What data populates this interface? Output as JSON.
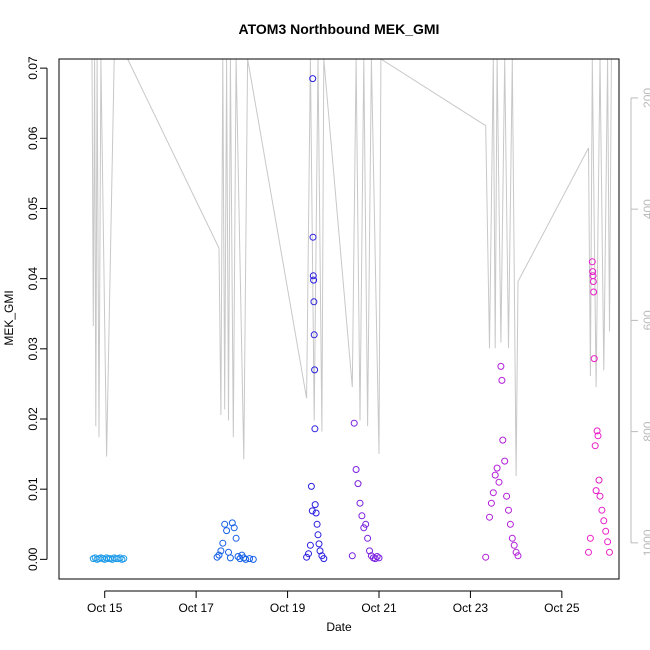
{
  "chart_data": {
    "type": "scatter",
    "title": "ATOM3 Northbound MEK_GMI",
    "xlabel": "Date",
    "ylabel": "MEK_GMI",
    "xlim": [
      "2023-10-14 00:00",
      "2023-10-26 06:00"
    ],
    "ylim": [
      -0.0028,
      0.0713
    ],
    "x_ticks": [
      {
        "t": "2023-10-15",
        "label": "Oct 15"
      },
      {
        "t": "2023-10-17",
        "label": "Oct 17"
      },
      {
        "t": "2023-10-19",
        "label": "Oct 19"
      },
      {
        "t": "2023-10-21",
        "label": "Oct 21"
      },
      {
        "t": "2023-10-23",
        "label": "Oct 23"
      },
      {
        "t": "2023-10-25",
        "label": "Oct 25"
      }
    ],
    "y_ticks": [
      {
        "v": 0.0,
        "label": "0.00"
      },
      {
        "v": 0.01,
        "label": "0.01"
      },
      {
        "v": 0.02,
        "label": "0.02"
      },
      {
        "v": 0.03,
        "label": "0.03"
      },
      {
        "v": 0.04,
        "label": "0.04"
      },
      {
        "v": 0.05,
        "label": "0.05"
      },
      {
        "v": 0.06,
        "label": "0.06"
      },
      {
        "v": 0.07,
        "label": "0.07"
      }
    ],
    "secondary_axis": {
      "side": "right",
      "color": "#bbbbbb",
      "reversed": true,
      "ylim": [
        1065,
        130
      ],
      "ticks": [
        {
          "v": 200,
          "label": "200"
        },
        {
          "v": 400,
          "label": "400"
        },
        {
          "v": 600,
          "label": "600"
        },
        {
          "v": 800,
          "label": "800"
        },
        {
          "v": 1000,
          "label": "1000"
        }
      ]
    },
    "series": [
      {
        "color": "#1e9be8",
        "points": [
          [
            "2023-10-14 18:00",
            0.0001
          ],
          [
            "2023-10-14 19:00",
            0.0002
          ],
          [
            "2023-10-14 20:00",
            0.0
          ],
          [
            "2023-10-14 21:00",
            0.0001
          ],
          [
            "2023-10-14 22:00",
            0.0002
          ],
          [
            "2023-10-14 23:00",
            0.0001
          ],
          [
            "2023-10-15 00:00",
            0.0
          ],
          [
            "2023-10-15 01:00",
            0.0002
          ],
          [
            "2023-10-15 02:00",
            0.0001
          ],
          [
            "2023-10-15 03:00",
            0.0001
          ],
          [
            "2023-10-15 04:00",
            0.0
          ],
          [
            "2023-10-15 05:00",
            0.0002
          ],
          [
            "2023-10-15 06:00",
            0.0001
          ],
          [
            "2023-10-15 07:00",
            0.0001
          ],
          [
            "2023-10-15 08:00",
            0.0002
          ],
          [
            "2023-10-15 09:00",
            0.0
          ],
          [
            "2023-10-15 10:00",
            0.0001
          ]
        ]
      },
      {
        "color": "#1460e8",
        "points": [
          [
            "2023-10-17 11:00",
            0.0003
          ],
          [
            "2023-10-17 12:00",
            0.0006
          ],
          [
            "2023-10-17 13:00",
            0.0012
          ],
          [
            "2023-10-17 14:00",
            0.0023
          ],
          [
            "2023-10-17 15:00",
            0.005
          ],
          [
            "2023-10-17 16:00",
            0.0041
          ],
          [
            "2023-10-17 17:00",
            0.001
          ],
          [
            "2023-10-17 18:00",
            0.0002
          ],
          [
            "2023-10-17 19:00",
            0.0052
          ],
          [
            "2023-10-17 20:00",
            0.0045
          ],
          [
            "2023-10-17 21:00",
            0.003
          ],
          [
            "2023-10-17 22:00",
            0.0004
          ],
          [
            "2023-10-17 23:00",
            0.0001
          ],
          [
            "2023-10-18 00:00",
            0.0006
          ],
          [
            "2023-10-18 01:00",
            0.0002
          ],
          [
            "2023-10-18 02:00",
            0.0
          ],
          [
            "2023-10-18 04:00",
            0.0001
          ],
          [
            "2023-10-18 06:00",
            0.0
          ]
        ]
      },
      {
        "color": "#2a1ee0",
        "points": [
          [
            "2023-10-19 10:00",
            0.0003
          ],
          [
            "2023-10-19 11:00",
            0.0008
          ],
          [
            "2023-10-19 12:00",
            0.002
          ],
          [
            "2023-10-19 12:30",
            0.0104
          ],
          [
            "2023-10-19 13:00",
            0.0069
          ],
          [
            "2023-10-19 13:10",
            0.0685
          ],
          [
            "2023-10-19 13:20",
            0.0459
          ],
          [
            "2023-10-19 13:30",
            0.0404
          ],
          [
            "2023-10-19 13:40",
            0.0398
          ],
          [
            "2023-10-19 13:50",
            0.0367
          ],
          [
            "2023-10-19 14:00",
            0.032
          ],
          [
            "2023-10-19 14:10",
            0.027
          ],
          [
            "2023-10-19 14:20",
            0.0186
          ],
          [
            "2023-10-19 14:30",
            0.0078
          ],
          [
            "2023-10-19 15:00",
            0.0066
          ],
          [
            "2023-10-19 15:30",
            0.005
          ],
          [
            "2023-10-19 16:00",
            0.0035
          ],
          [
            "2023-10-19 16:30",
            0.0022
          ],
          [
            "2023-10-19 17:00",
            0.0012
          ],
          [
            "2023-10-19 18:00",
            0.0005
          ],
          [
            "2023-10-19 19:00",
            0.0001
          ]
        ]
      },
      {
        "color": "#7a1ee0",
        "points": [
          [
            "2023-10-20 10:00",
            0.0005
          ],
          [
            "2023-10-20 11:00",
            0.0194
          ],
          [
            "2023-10-20 12:00",
            0.0128
          ],
          [
            "2023-10-20 13:00",
            0.0108
          ],
          [
            "2023-10-20 14:00",
            0.008
          ],
          [
            "2023-10-20 15:00",
            0.0062
          ],
          [
            "2023-10-20 16:00",
            0.0045
          ],
          [
            "2023-10-20 17:00",
            0.005
          ],
          [
            "2023-10-20 18:00",
            0.003
          ],
          [
            "2023-10-20 19:00",
            0.0012
          ],
          [
            "2023-10-20 20:00",
            0.0005
          ],
          [
            "2023-10-20 21:00",
            0.0002
          ],
          [
            "2023-10-20 22:00",
            0.0001
          ],
          [
            "2023-10-20 23:00",
            0.0004
          ],
          [
            "2023-10-21 00:00",
            0.0002
          ]
        ]
      },
      {
        "color": "#b21ed8",
        "points": [
          [
            "2023-10-23 08:00",
            0.0003
          ],
          [
            "2023-10-23 10:00",
            0.006
          ],
          [
            "2023-10-23 11:00",
            0.008
          ],
          [
            "2023-10-23 12:00",
            0.0095
          ],
          [
            "2023-10-23 13:00",
            0.012
          ],
          [
            "2023-10-23 14:00",
            0.013
          ],
          [
            "2023-10-23 15:00",
            0.011
          ],
          [
            "2023-10-23 16:00",
            0.0275
          ],
          [
            "2023-10-23 16:30",
            0.0255
          ],
          [
            "2023-10-23 17:00",
            0.017
          ],
          [
            "2023-10-23 18:00",
            0.014
          ],
          [
            "2023-10-23 19:00",
            0.009
          ],
          [
            "2023-10-23 20:00",
            0.007
          ],
          [
            "2023-10-23 21:00",
            0.005
          ],
          [
            "2023-10-23 22:00",
            0.003
          ],
          [
            "2023-10-23 23:00",
            0.002
          ],
          [
            "2023-10-24 00:00",
            0.001
          ],
          [
            "2023-10-24 01:00",
            0.0005
          ]
        ]
      },
      {
        "color": "#e81ec8",
        "points": [
          [
            "2023-10-25 14:00",
            0.001
          ],
          [
            "2023-10-25 15:00",
            0.003
          ],
          [
            "2023-10-25 16:00",
            0.0424
          ],
          [
            "2023-10-25 16:10",
            0.041
          ],
          [
            "2023-10-25 16:20",
            0.0404
          ],
          [
            "2023-10-25 16:30",
            0.0396
          ],
          [
            "2023-10-25 16:40",
            0.0381
          ],
          [
            "2023-10-25 17:00",
            0.0286
          ],
          [
            "2023-10-25 17:30",
            0.0162
          ],
          [
            "2023-10-25 18:00",
            0.0098
          ],
          [
            "2023-10-25 18:30",
            0.0183
          ],
          [
            "2023-10-25 19:00",
            0.0176
          ],
          [
            "2023-10-25 19:30",
            0.0113
          ],
          [
            "2023-10-25 20:00",
            0.009
          ],
          [
            "2023-10-25 21:00",
            0.007
          ],
          [
            "2023-10-25 22:00",
            0.0055
          ],
          [
            "2023-10-25 23:00",
            0.004
          ],
          [
            "2023-10-26 00:00",
            0.0025
          ],
          [
            "2023-10-26 01:00",
            0.001
          ]
        ]
      }
    ],
    "secondary_line": {
      "color": "#c8c8c8",
      "points": [
        [
          "2023-10-14 17:20",
          130
        ],
        [
          "2023-10-14 18:00",
          610
        ],
        [
          "2023-10-14 18:40",
          130
        ],
        [
          "2023-10-14 19:20",
          790
        ],
        [
          "2023-10-14 20:00",
          130
        ],
        [
          "2023-10-14 21:00",
          810
        ],
        [
          "2023-10-14 22:00",
          130
        ],
        [
          "2023-10-15 01:00",
          845
        ],
        [
          "2023-10-15 05:00",
          130
        ],
        [
          "2023-10-15 12:00",
          130
        ],
        [
          "2023-10-17 12:00",
          470
        ],
        [
          "2023-10-17 13:00",
          770
        ],
        [
          "2023-10-17 14:00",
          130
        ],
        [
          "2023-10-17 15:00",
          760
        ],
        [
          "2023-10-17 16:00",
          130
        ],
        [
          "2023-10-17 17:00",
          780
        ],
        [
          "2023-10-17 18:00",
          130
        ],
        [
          "2023-10-17 19:30",
          810
        ],
        [
          "2023-10-17 21:00",
          130
        ],
        [
          "2023-10-18 01:00",
          850
        ],
        [
          "2023-10-18 03:00",
          130
        ],
        [
          "2023-10-19 10:00",
          740
        ],
        [
          "2023-10-19 12:00",
          130
        ],
        [
          "2023-10-19 14:00",
          780
        ],
        [
          "2023-10-19 16:00",
          130
        ],
        [
          "2023-10-19 18:00",
          800
        ],
        [
          "2023-10-19 19:00",
          130
        ],
        [
          "2023-10-20 10:00",
          720
        ],
        [
          "2023-10-20 12:00",
          130
        ],
        [
          "2023-10-20 14:00",
          780
        ],
        [
          "2023-10-20 16:00",
          130
        ],
        [
          "2023-10-20 18:00",
          790
        ],
        [
          "2023-10-20 20:00",
          130
        ],
        [
          "2023-10-21 00:00",
          840
        ],
        [
          "2023-10-21 01:00",
          130
        ],
        [
          "2023-10-23 08:00",
          250
        ],
        [
          "2023-10-23 10:00",
          650
        ],
        [
          "2023-10-23 12:00",
          130
        ],
        [
          "2023-10-23 13:00",
          650
        ],
        [
          "2023-10-23 14:00",
          130
        ],
        [
          "2023-10-23 16:00",
          640
        ],
        [
          "2023-10-23 18:00",
          130
        ],
        [
          "2023-10-23 20:00",
          650
        ],
        [
          "2023-10-23 22:00",
          130
        ],
        [
          "2023-10-24 00:00",
          880
        ],
        [
          "2023-10-24 01:00",
          530
        ],
        [
          "2023-10-25 14:00",
          290
        ],
        [
          "2023-10-25 15:00",
          700
        ],
        [
          "2023-10-25 16:00",
          130
        ],
        [
          "2023-10-25 18:00",
          720
        ],
        [
          "2023-10-25 20:00",
          130
        ],
        [
          "2023-10-25 22:00",
          690
        ],
        [
          "2023-10-26 00:00",
          130
        ],
        [
          "2023-10-26 01:00",
          620
        ],
        [
          "2023-10-26 02:00",
          130
        ]
      ]
    }
  }
}
